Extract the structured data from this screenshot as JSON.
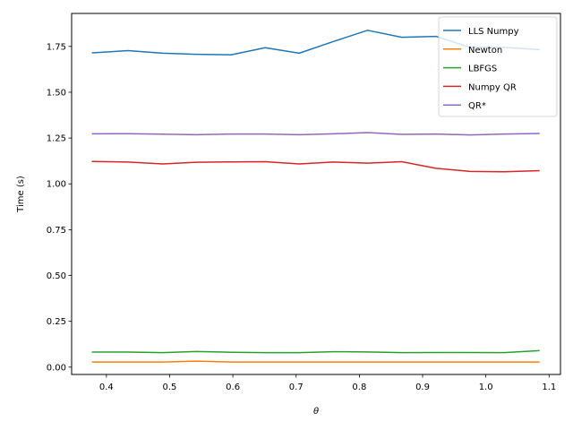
{
  "chart_data": {
    "type": "line",
    "title": "",
    "xlabel": "θ",
    "ylabel": "Time (s)",
    "xlim": [
      0.345,
      1.118
    ],
    "ylim": [
      -0.04,
      1.93
    ],
    "xticks": [
      0.4,
      0.5,
      0.6,
      0.7,
      0.8,
      0.9,
      1.0,
      1.1
    ],
    "yticks": [
      0.0,
      0.25,
      0.5,
      0.75,
      1.0,
      1.25,
      1.5,
      1.75
    ],
    "x": [
      0.378,
      0.434,
      0.489,
      0.542,
      0.597,
      0.651,
      0.705,
      0.759,
      0.813,
      0.867,
      0.921,
      0.975,
      1.029,
      1.084
    ],
    "grid": false,
    "legend_position": "top-right",
    "series": [
      {
        "name": "LLS Numpy",
        "color": "#1f77b4",
        "values": [
          1.715,
          1.727,
          1.713,
          1.707,
          1.704,
          1.743,
          1.713,
          1.777,
          1.838,
          1.8,
          1.805,
          1.745,
          1.745,
          1.733
        ]
      },
      {
        "name": "Newton",
        "color": "#ff7f0e",
        "values": [
          0.028,
          0.028,
          0.028,
          0.033,
          0.028,
          0.028,
          0.028,
          0.028,
          0.028,
          0.028,
          0.028,
          0.028,
          0.028,
          0.028
        ]
      },
      {
        "name": "LBFGS",
        "color": "#2ca02c",
        "values": [
          0.082,
          0.082,
          0.079,
          0.085,
          0.081,
          0.079,
          0.079,
          0.084,
          0.083,
          0.079,
          0.08,
          0.08,
          0.079,
          0.09
        ]
      },
      {
        "name": "Numpy QR",
        "color": "#d62728",
        "values": [
          1.122,
          1.119,
          1.109,
          1.118,
          1.12,
          1.121,
          1.109,
          1.119,
          1.113,
          1.121,
          1.085,
          1.068,
          1.066,
          1.072
        ]
      },
      {
        "name": "QR*",
        "color": "#9467bd",
        "values": [
          1.273,
          1.274,
          1.271,
          1.268,
          1.272,
          1.272,
          1.268,
          1.273,
          1.28,
          1.27,
          1.272,
          1.267,
          1.272,
          1.275
        ]
      }
    ]
  }
}
